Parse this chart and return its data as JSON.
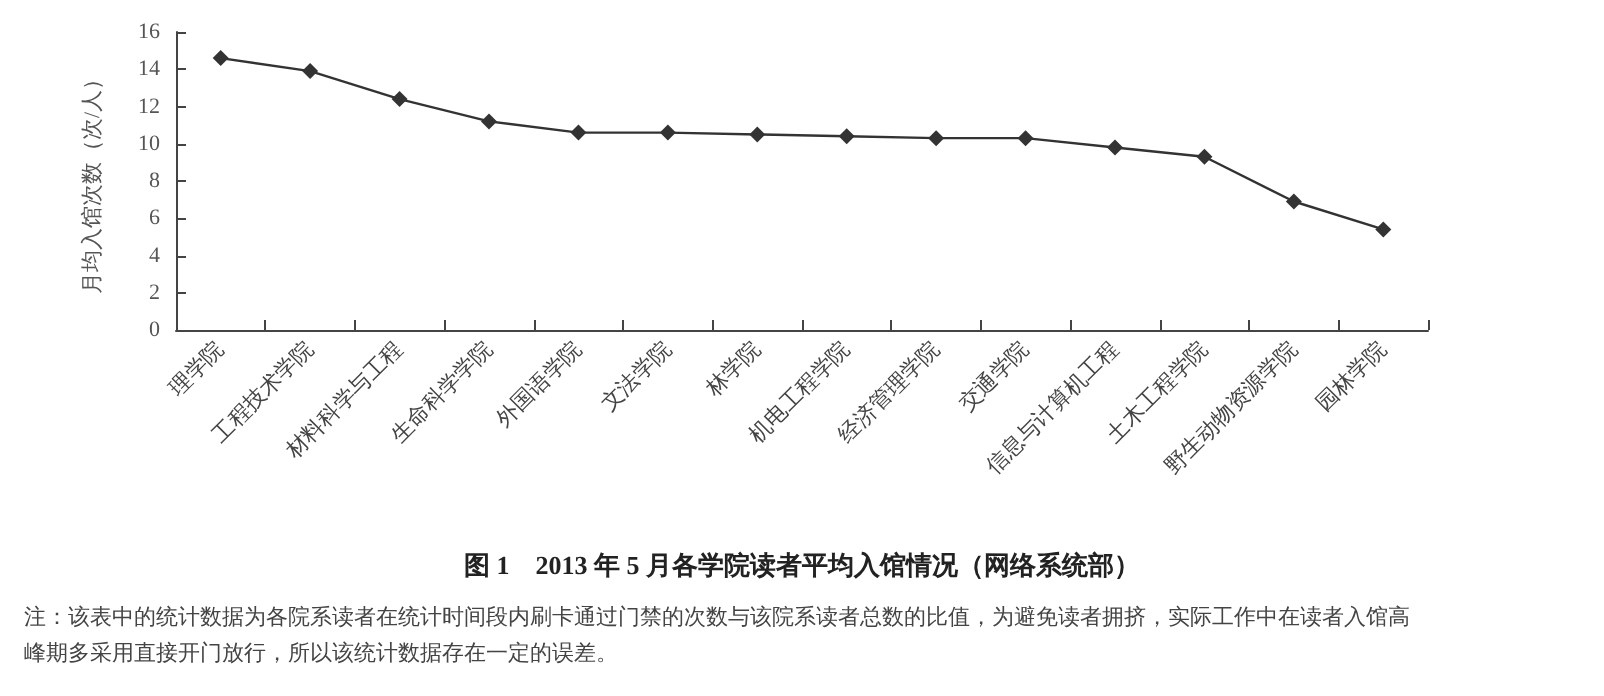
{
  "chart_data": {
    "type": "line",
    "title": "图 1　2013 年 5 月各学院读者平均入馆情况（网络系统部）",
    "ylabel": "月均入馆次数（次/人）",
    "categories": [
      "理学院",
      "工程技术学院",
      "材料科学与工程",
      "生命科学学院",
      "外国语学院",
      "文法学院",
      "林学院",
      "机电工程学院",
      "经济管理学院",
      "交通学院",
      "信息与计算机工程",
      "土木工程学院",
      "野生动物资源学院",
      "园林学院"
    ],
    "series": [
      {
        "color": "#333333",
        "values": [
          14.6,
          13.9,
          12.4,
          11.2,
          10.6,
          10.6,
          10.5,
          10.4,
          10.3,
          10.3,
          9.8,
          9.3,
          6.9,
          5.4
        ]
      }
    ],
    "ylim": [
      0,
      16
    ],
    "yticks": [
      0,
      2,
      4,
      6,
      8,
      10,
      12,
      14,
      16
    ],
    "grid": false,
    "marker": "diamond",
    "line_style": "solid",
    "annotations": [
      "注：该表中的统计数据为各院系读者在统计时间段内刷卡通过门禁的次数与该院系读者总数的比值，为避免读者拥挤，实际工作中在读者入馆高峰期多采用直接开门放行，所以该统计数据存在一定的误差。"
    ]
  }
}
